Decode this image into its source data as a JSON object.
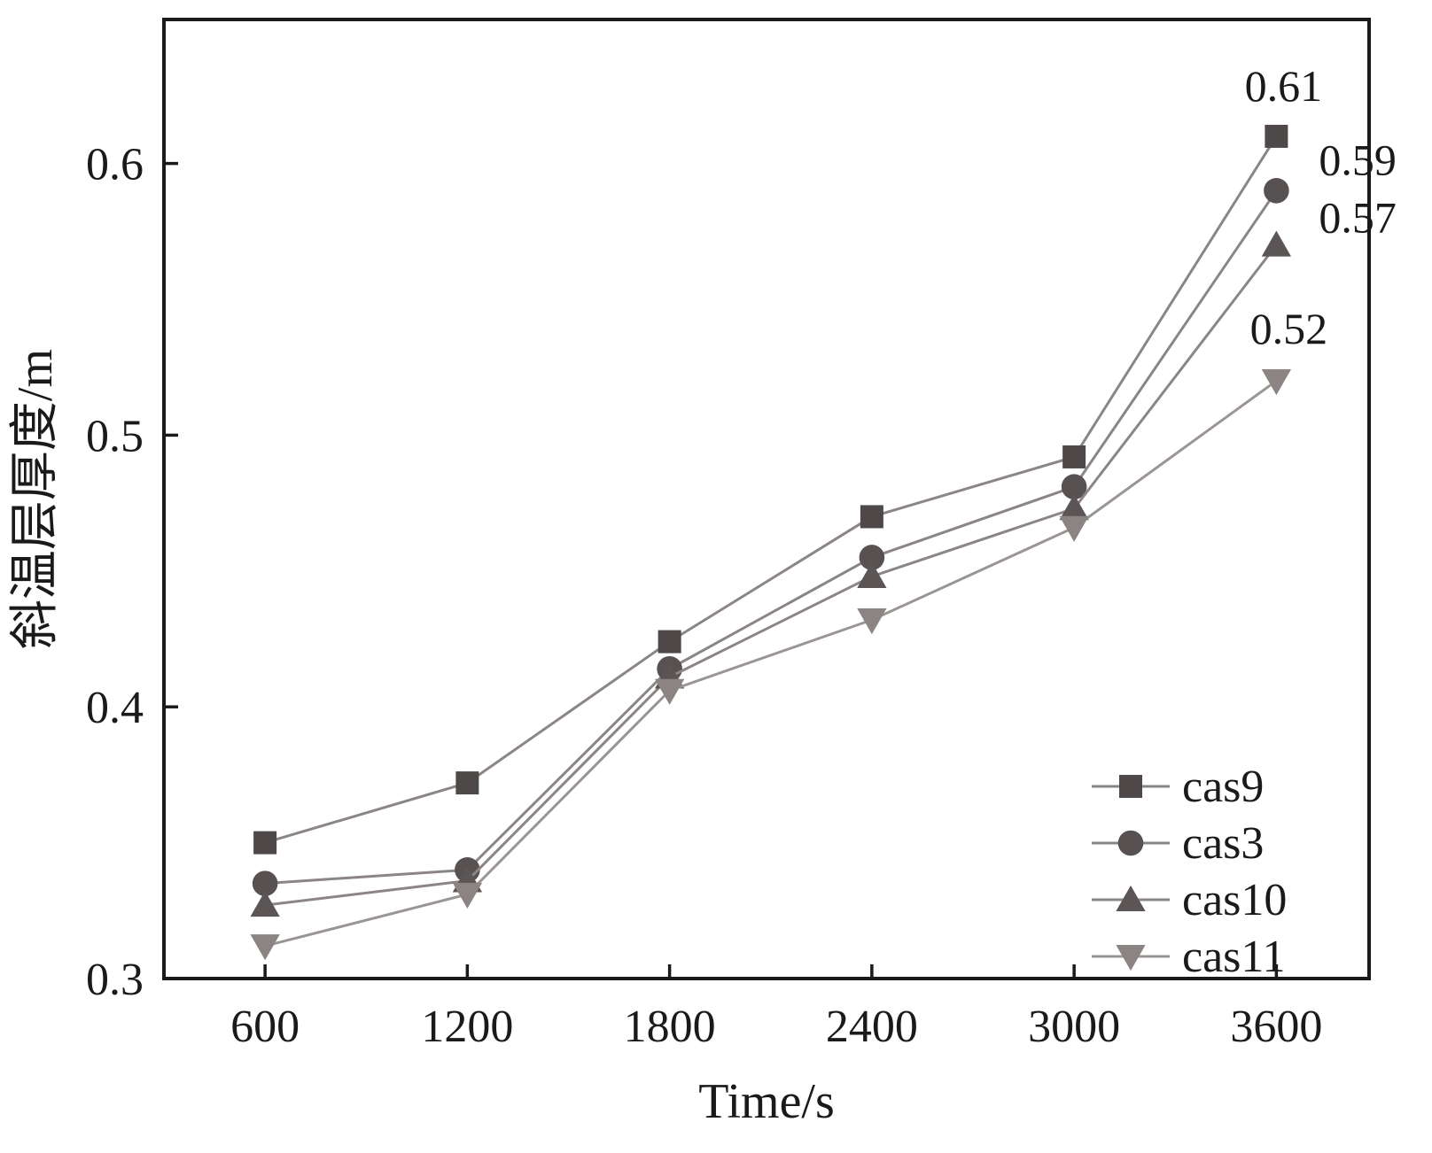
{
  "chart_data": {
    "type": "line",
    "title": "",
    "xlabel": "Time/s",
    "ylabel": "斜温层厚度/m",
    "x": [
      600,
      1200,
      1800,
      2400,
      3000,
      3600
    ],
    "xticks": [
      600,
      1200,
      1800,
      2400,
      3000,
      3600
    ],
    "yticks": [
      0.3,
      0.4,
      0.5,
      0.6
    ],
    "ytick_labels": [
      "0.3",
      "0.4",
      "0.5",
      "0.6"
    ],
    "xlim": [
      300,
      3875
    ],
    "ylim": [
      0.3,
      0.653
    ],
    "grid": false,
    "legend_position": "lower-right",
    "axis_color": "#1a1a1a",
    "series": [
      {
        "name": "cas9",
        "marker": "square",
        "marker_color": "#4e4848",
        "line_color": "#8b8585",
        "values": [
          0.35,
          0.372,
          0.424,
          0.47,
          0.492,
          0.61
        ],
        "end_label": "0.61"
      },
      {
        "name": "cas3",
        "marker": "circle",
        "marker_color": "#585151",
        "line_color": "#8b8585",
        "values": [
          0.335,
          0.34,
          0.414,
          0.455,
          0.481,
          0.59
        ],
        "end_label": "0.59"
      },
      {
        "name": "cas10",
        "marker": "triangle-up",
        "marker_color": "#5c5555",
        "line_color": "#8b8585",
        "values": [
          0.327,
          0.336,
          0.411,
          0.448,
          0.473,
          0.57
        ],
        "end_label": "0.57"
      },
      {
        "name": "cas11",
        "marker": "triangle-down",
        "marker_color": "#8c8383",
        "line_color": "#9b9494",
        "values": [
          0.312,
          0.331,
          0.406,
          0.432,
          0.466,
          0.52
        ],
        "end_label": "0.52"
      }
    ]
  }
}
